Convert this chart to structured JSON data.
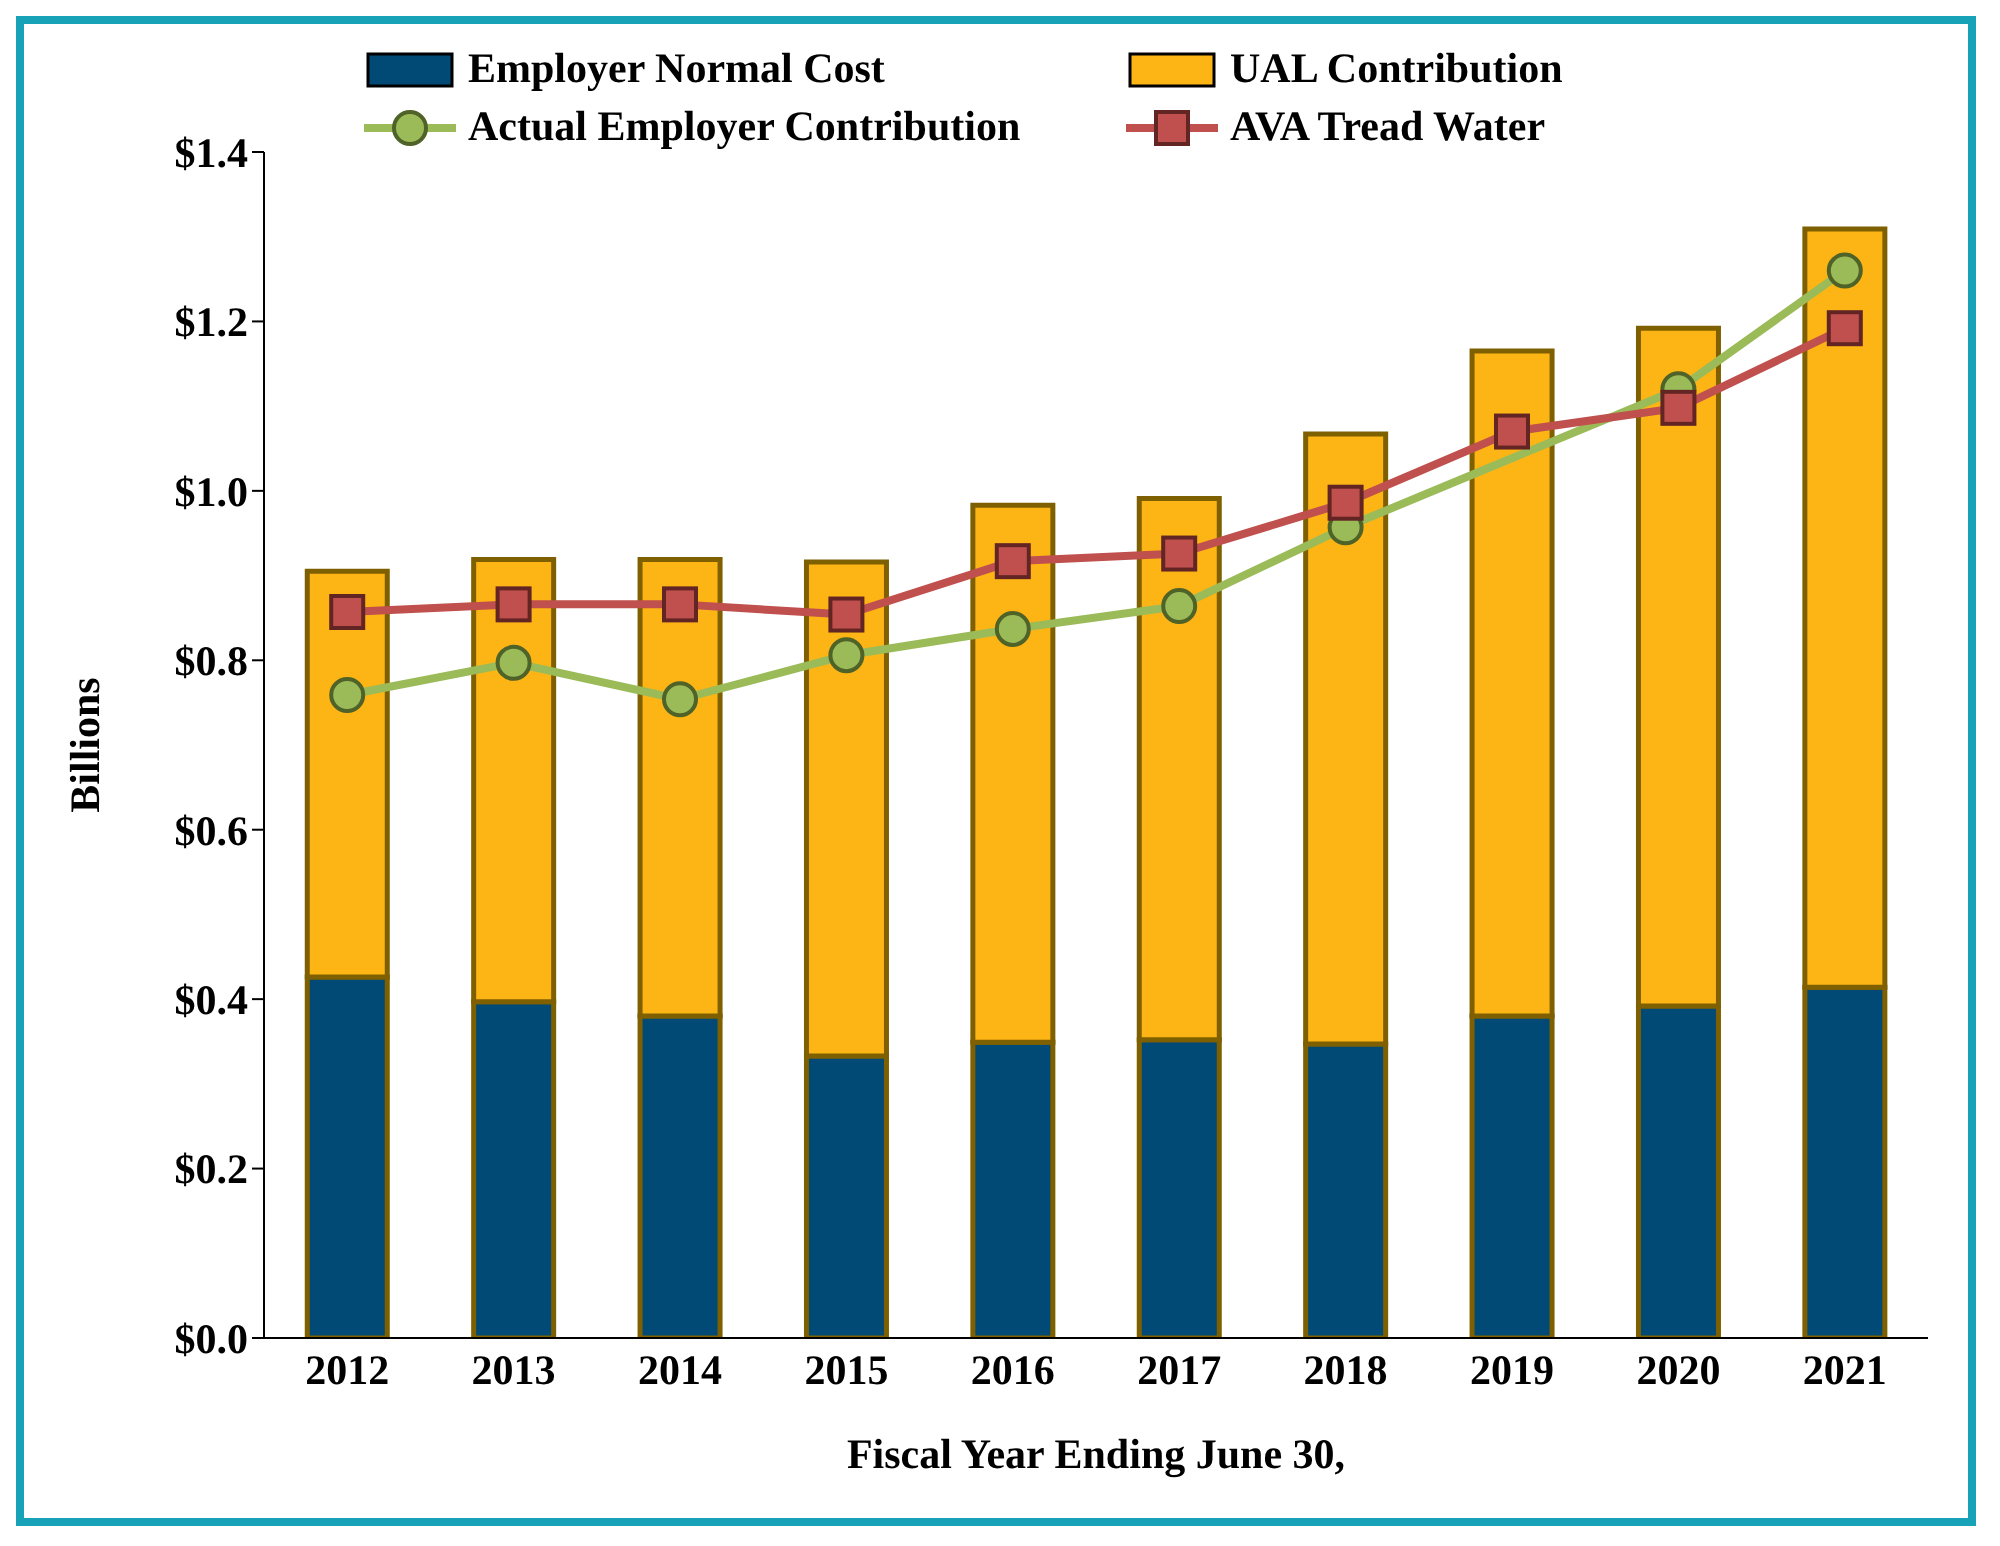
{
  "chart_data": {
    "type": "bar",
    "stacked": true,
    "xlabel": "Fiscal Year Ending June 30,",
    "ylabel": "Billions",
    "categories": [
      "2012",
      "2013",
      "2014",
      "2015",
      "2016",
      "2017",
      "2018",
      "2019",
      "2020",
      "2021"
    ],
    "series": [
      {
        "name": "Employer Normal Cost",
        "color": "#004a75",
        "values": [
          0.426,
          0.397,
          0.38,
          0.333,
          0.349,
          0.352,
          0.347,
          0.38,
          0.392,
          0.414
        ]
      },
      {
        "name": "UAL Contribution",
        "color": "#fdb515",
        "values": [
          0.479,
          0.522,
          0.539,
          0.583,
          0.634,
          0.639,
          0.72,
          0.785,
          0.8,
          0.895
        ]
      },
      {
        "name": "Actual Employer Contribution",
        "type": "line",
        "marker": "circle",
        "color": "#9bbb59",
        "values": [
          0.759,
          0.797,
          0.754,
          0.806,
          0.837,
          0.864,
          0.957,
          null,
          1.12,
          1.26
        ]
      },
      {
        "name": "AVA Tread Water",
        "type": "line",
        "marker": "square",
        "color": "#c0504d",
        "values": [
          0.857,
          0.866,
          0.866,
          0.854,
          0.917,
          0.926,
          0.986,
          1.07,
          1.098,
          1.192
        ]
      }
    ],
    "ylim": [
      0,
      1.4
    ],
    "yticks": [
      {
        "value": 0,
        "label": "$0.0"
      },
      {
        "value": 0.2,
        "label": "$0.2"
      },
      {
        "value": 0.4,
        "label": "$0.4"
      },
      {
        "value": 0.6,
        "label": "$0.6"
      },
      {
        "value": 0.8,
        "label": "$0.8"
      },
      {
        "value": 1.0,
        "label": "$1.0"
      },
      {
        "value": 1.2,
        "label": "$1.2"
      },
      {
        "value": 1.4,
        "label": "$1.4"
      }
    ],
    "grid": false,
    "legend": "top"
  }
}
